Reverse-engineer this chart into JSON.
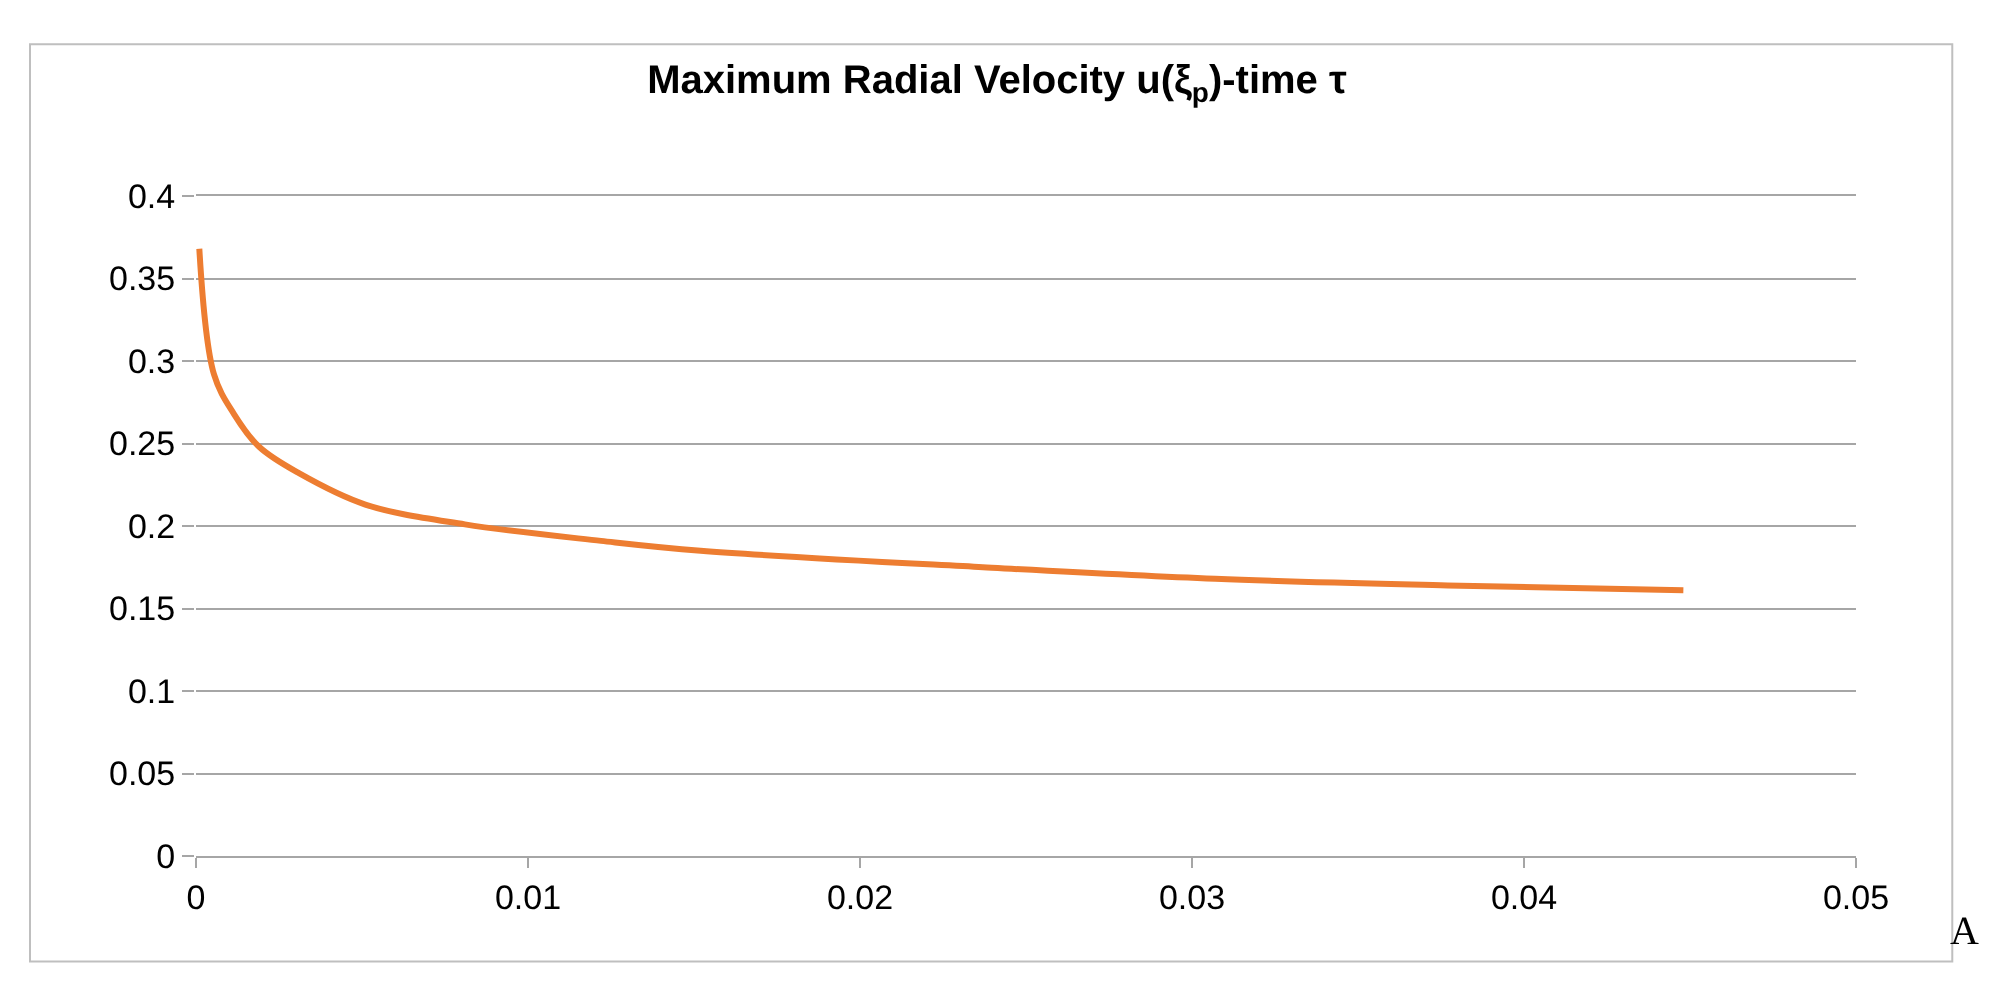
{
  "chart_data": {
    "type": "line",
    "title": "Maximum Radial Velocity u(ξ$_{p}$)-time τ",
    "x": [
      0.0001,
      0.00054,
      0.00114,
      0.0019,
      0.0031,
      0.0051,
      0.0081,
      0.0122,
      0.0152,
      0.0237,
      0.0307,
      0.0377,
      0.0448
    ],
    "series": [
      {
        "color": "#ed7d31",
        "values": [
          0.368,
          0.292,
          0.268,
          0.248,
          0.232,
          0.213,
          0.201,
          0.191,
          0.185,
          0.175,
          0.168,
          0.164,
          0.161
        ]
      }
    ],
    "xlim": [
      0,
      0.05
    ],
    "xticks": [
      0,
      0.01,
      0.02,
      0.03,
      0.04,
      0.05
    ],
    "ylim": [
      0,
      0.4
    ],
    "yticks": [
      0,
      0.05,
      0.1,
      0.15,
      0.2,
      0.25,
      0.3,
      0.35,
      0.4
    ],
    "grid": "y",
    "marker": "none",
    "line_style": "solid",
    "annotations": [
      "A"
    ]
  }
}
